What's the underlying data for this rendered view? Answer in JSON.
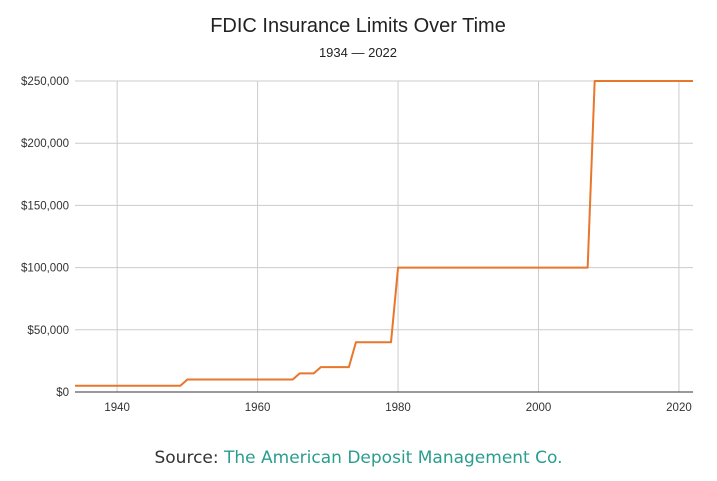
{
  "colors": {
    "series": "#e8762b",
    "brand": "#2a9d8f"
  },
  "chart_data": {
    "type": "line",
    "title": "FDIC Insurance Limits Over Time",
    "subtitle": "1934 — 2022",
    "xlabel": "",
    "ylabel": "",
    "xlim": [
      1934,
      2022
    ],
    "ylim": [
      0,
      250000
    ],
    "x_ticks": [
      1940,
      1960,
      1980,
      2000,
      2020
    ],
    "y_ticks": [
      0,
      50000,
      100000,
      150000,
      200000,
      250000
    ],
    "y_tick_labels": [
      "$0",
      "$50,000",
      "$100,000",
      "$150,000",
      "$200,000",
      "$250,000"
    ],
    "grid": true,
    "legend": "none",
    "series": [
      {
        "x": [
          1934,
          1949,
          1950,
          1965,
          1966,
          1968,
          1969,
          1973,
          1974,
          1979,
          1980,
          2007,
          2008,
          2022
        ],
        "y": [
          5000,
          5000,
          10000,
          10000,
          15000,
          15000,
          20000,
          20000,
          40000,
          40000,
          100000,
          100000,
          250000,
          250000
        ]
      }
    ]
  },
  "source": {
    "prefix": "Source:",
    "name": "The American Deposit Management Co."
  }
}
